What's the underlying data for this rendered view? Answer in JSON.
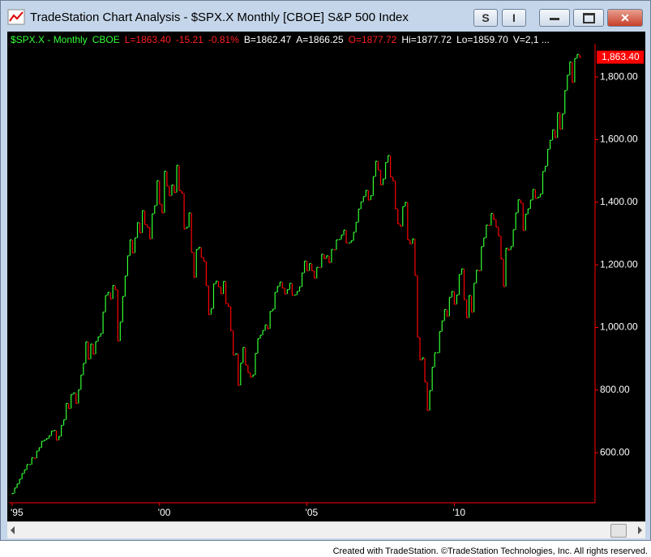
{
  "window": {
    "title": "TradeStation Chart Analysis - $SPX.X Monthly [CBOE] S&P 500 Index",
    "buttons": [
      "S",
      "I"
    ]
  },
  "header": [
    {
      "text": "$SPX.X - Monthly",
      "color": "#33ff33"
    },
    {
      "text": "CBOE",
      "color": "#33ff33"
    },
    {
      "text": "L=1863.40",
      "color": "#ff2020"
    },
    {
      "text": "-15.21",
      "color": "#ff2020"
    },
    {
      "text": "-0.81%",
      "color": "#ff2020"
    },
    {
      "text": "B=1862.47",
      "color": "#ffffff"
    },
    {
      "text": "A=1866.25",
      "color": "#ffffff"
    },
    {
      "text": "O=1877.72",
      "color": "#ff2020"
    },
    {
      "text": "Hi=1877.72",
      "color": "#ffffff"
    },
    {
      "text": "Lo=1859.70",
      "color": "#ffffff"
    },
    {
      "text": "V=2,1 ...",
      "color": "#ffffff"
    }
  ],
  "chart_data": {
    "type": "stock",
    "up_color": "#33ff33",
    "down_color": "#ff0000",
    "last_price": {
      "value": 1863.4,
      "label": "1,863.40"
    },
    "categories": [
      "'95",
      null,
      null,
      null,
      null,
      null,
      null,
      null,
      null,
      null,
      null,
      null,
      null,
      null,
      null,
      null,
      null,
      null,
      null,
      null,
      null,
      null,
      null,
      null,
      null,
      null,
      null,
      null,
      null,
      null,
      null,
      null,
      null,
      null,
      null,
      null,
      null,
      null,
      null,
      null,
      null,
      null,
      null,
      null,
      null,
      null,
      null,
      null,
      null,
      null,
      null,
      null,
      null,
      null,
      null,
      null,
      null,
      null,
      null,
      null,
      "'00",
      null,
      null,
      null,
      null,
      null,
      null,
      null,
      null,
      null,
      null,
      null,
      null,
      null,
      null,
      null,
      null,
      null,
      null,
      null,
      null,
      null,
      null,
      null,
      null,
      null,
      null,
      null,
      null,
      null,
      null,
      null,
      null,
      null,
      null,
      null,
      null,
      null,
      null,
      null,
      null,
      null,
      null,
      null,
      null,
      null,
      null,
      null,
      null,
      null,
      null,
      null,
      null,
      null,
      null,
      null,
      null,
      null,
      null,
      null,
      "'05",
      null,
      null,
      null,
      null,
      null,
      null,
      null,
      null,
      null,
      null,
      null,
      null,
      null,
      null,
      null,
      null,
      null,
      null,
      null,
      null,
      null,
      null,
      null,
      null,
      null,
      null,
      null,
      null,
      null,
      null,
      null,
      null,
      null,
      null,
      null,
      null,
      null,
      null,
      null,
      null,
      null,
      null,
      null,
      null,
      null,
      null,
      null,
      null,
      null,
      null,
      null,
      null,
      null,
      null,
      null,
      null,
      null,
      null,
      null,
      "'10",
      null,
      null,
      null,
      null,
      null,
      null,
      null,
      null,
      null,
      null,
      null,
      null,
      null,
      null,
      null,
      null,
      null,
      null,
      null,
      null,
      null,
      null,
      null,
      null,
      null,
      null,
      null,
      null,
      null,
      null,
      null,
      null,
      null,
      null,
      null,
      null,
      null,
      null,
      null,
      null,
      null,
      null,
      null,
      null,
      null,
      null,
      null,
      null,
      null,
      null,
      null
    ],
    "values": [
      470,
      487,
      500,
      515,
      533,
      545,
      562,
      562,
      584,
      582,
      605,
      616,
      636,
      640,
      645,
      654,
      669,
      671,
      640,
      652,
      687,
      705,
      757,
      741,
      786,
      791,
      757,
      801,
      848,
      885,
      954,
      899,
      947,
      915,
      955,
      970,
      980,
      1049,
      1102,
      1112,
      1091,
      1134,
      1121,
      957,
      1017,
      1099,
      1164,
      1229,
      1280,
      1238,
      1286,
      1335,
      1302,
      1373,
      1329,
      1320,
      1283,
      1363,
      1389,
      1469,
      1394,
      1366,
      1499,
      1452,
      1421,
      1455,
      1431,
      1518,
      1437,
      1429,
      1315,
      1320,
      1366,
      1240,
      1160,
      1249,
      1256,
      1224,
      1211,
      1134,
      1041,
      1060,
      1139,
      1148,
      1130,
      1107,
      1147,
      1077,
      1067,
      990,
      912,
      916,
      815,
      886,
      936,
      880,
      856,
      841,
      848,
      917,
      964,
      975,
      990,
      1008,
      996,
      1051,
      1058,
      1112,
      1131,
      1145,
      1126,
      1107,
      1121,
      1141,
      1102,
      1104,
      1115,
      1130,
      1174,
      1212,
      1181,
      1204,
      1181,
      1157,
      1192,
      1191,
      1234,
      1220,
      1229,
      1207,
      1249,
      1248,
      1280,
      1281,
      1295,
      1311,
      1270,
      1270,
      1277,
      1304,
      1336,
      1378,
      1401,
      1418,
      1438,
      1407,
      1421,
      1482,
      1531,
      1503,
      1455,
      1474,
      1527,
      1549,
      1481,
      1468,
      1379,
      1331,
      1323,
      1386,
      1400,
      1280,
      1267,
      1283,
      1166,
      969,
      896,
      903,
      826,
      735,
      798,
      873,
      919,
      919,
      987,
      1021,
      1057,
      1036,
      1096,
      1115,
      1074,
      1104,
      1169,
      1187,
      1089,
      1031,
      1102,
      1049,
      1141,
      1183,
      1181,
      1258,
      1286,
      1327,
      1326,
      1364,
      1345,
      1321,
      1292,
      1219,
      1131,
      1253,
      1247,
      1258,
      1312,
      1366,
      1408,
      1398,
      1310,
      1362,
      1379,
      1407,
      1441,
      1412,
      1416,
      1426,
      1498,
      1515,
      1569,
      1598,
      1631,
      1606,
      1686,
      1633,
      1682,
      1757,
      1806,
      1848,
      1783,
      1859,
      1872,
      1863.4
    ],
    "ylim": [
      440,
      1896
    ],
    "yticks": [
      {
        "value": 600,
        "label": "600.00"
      },
      {
        "value": 800,
        "label": "800.00"
      },
      {
        "value": 1000,
        "label": "1,000.00"
      },
      {
        "value": 1200,
        "label": "1,200.00"
      },
      {
        "value": 1400,
        "label": "1,400.00"
      },
      {
        "value": 1600,
        "label": "1,600.00"
      },
      {
        "value": 1800,
        "label": "1,800.00"
      }
    ],
    "grid": false
  },
  "footer": "Created with TradeStation. ©TradeStation Technologies, Inc. All rights reserved."
}
